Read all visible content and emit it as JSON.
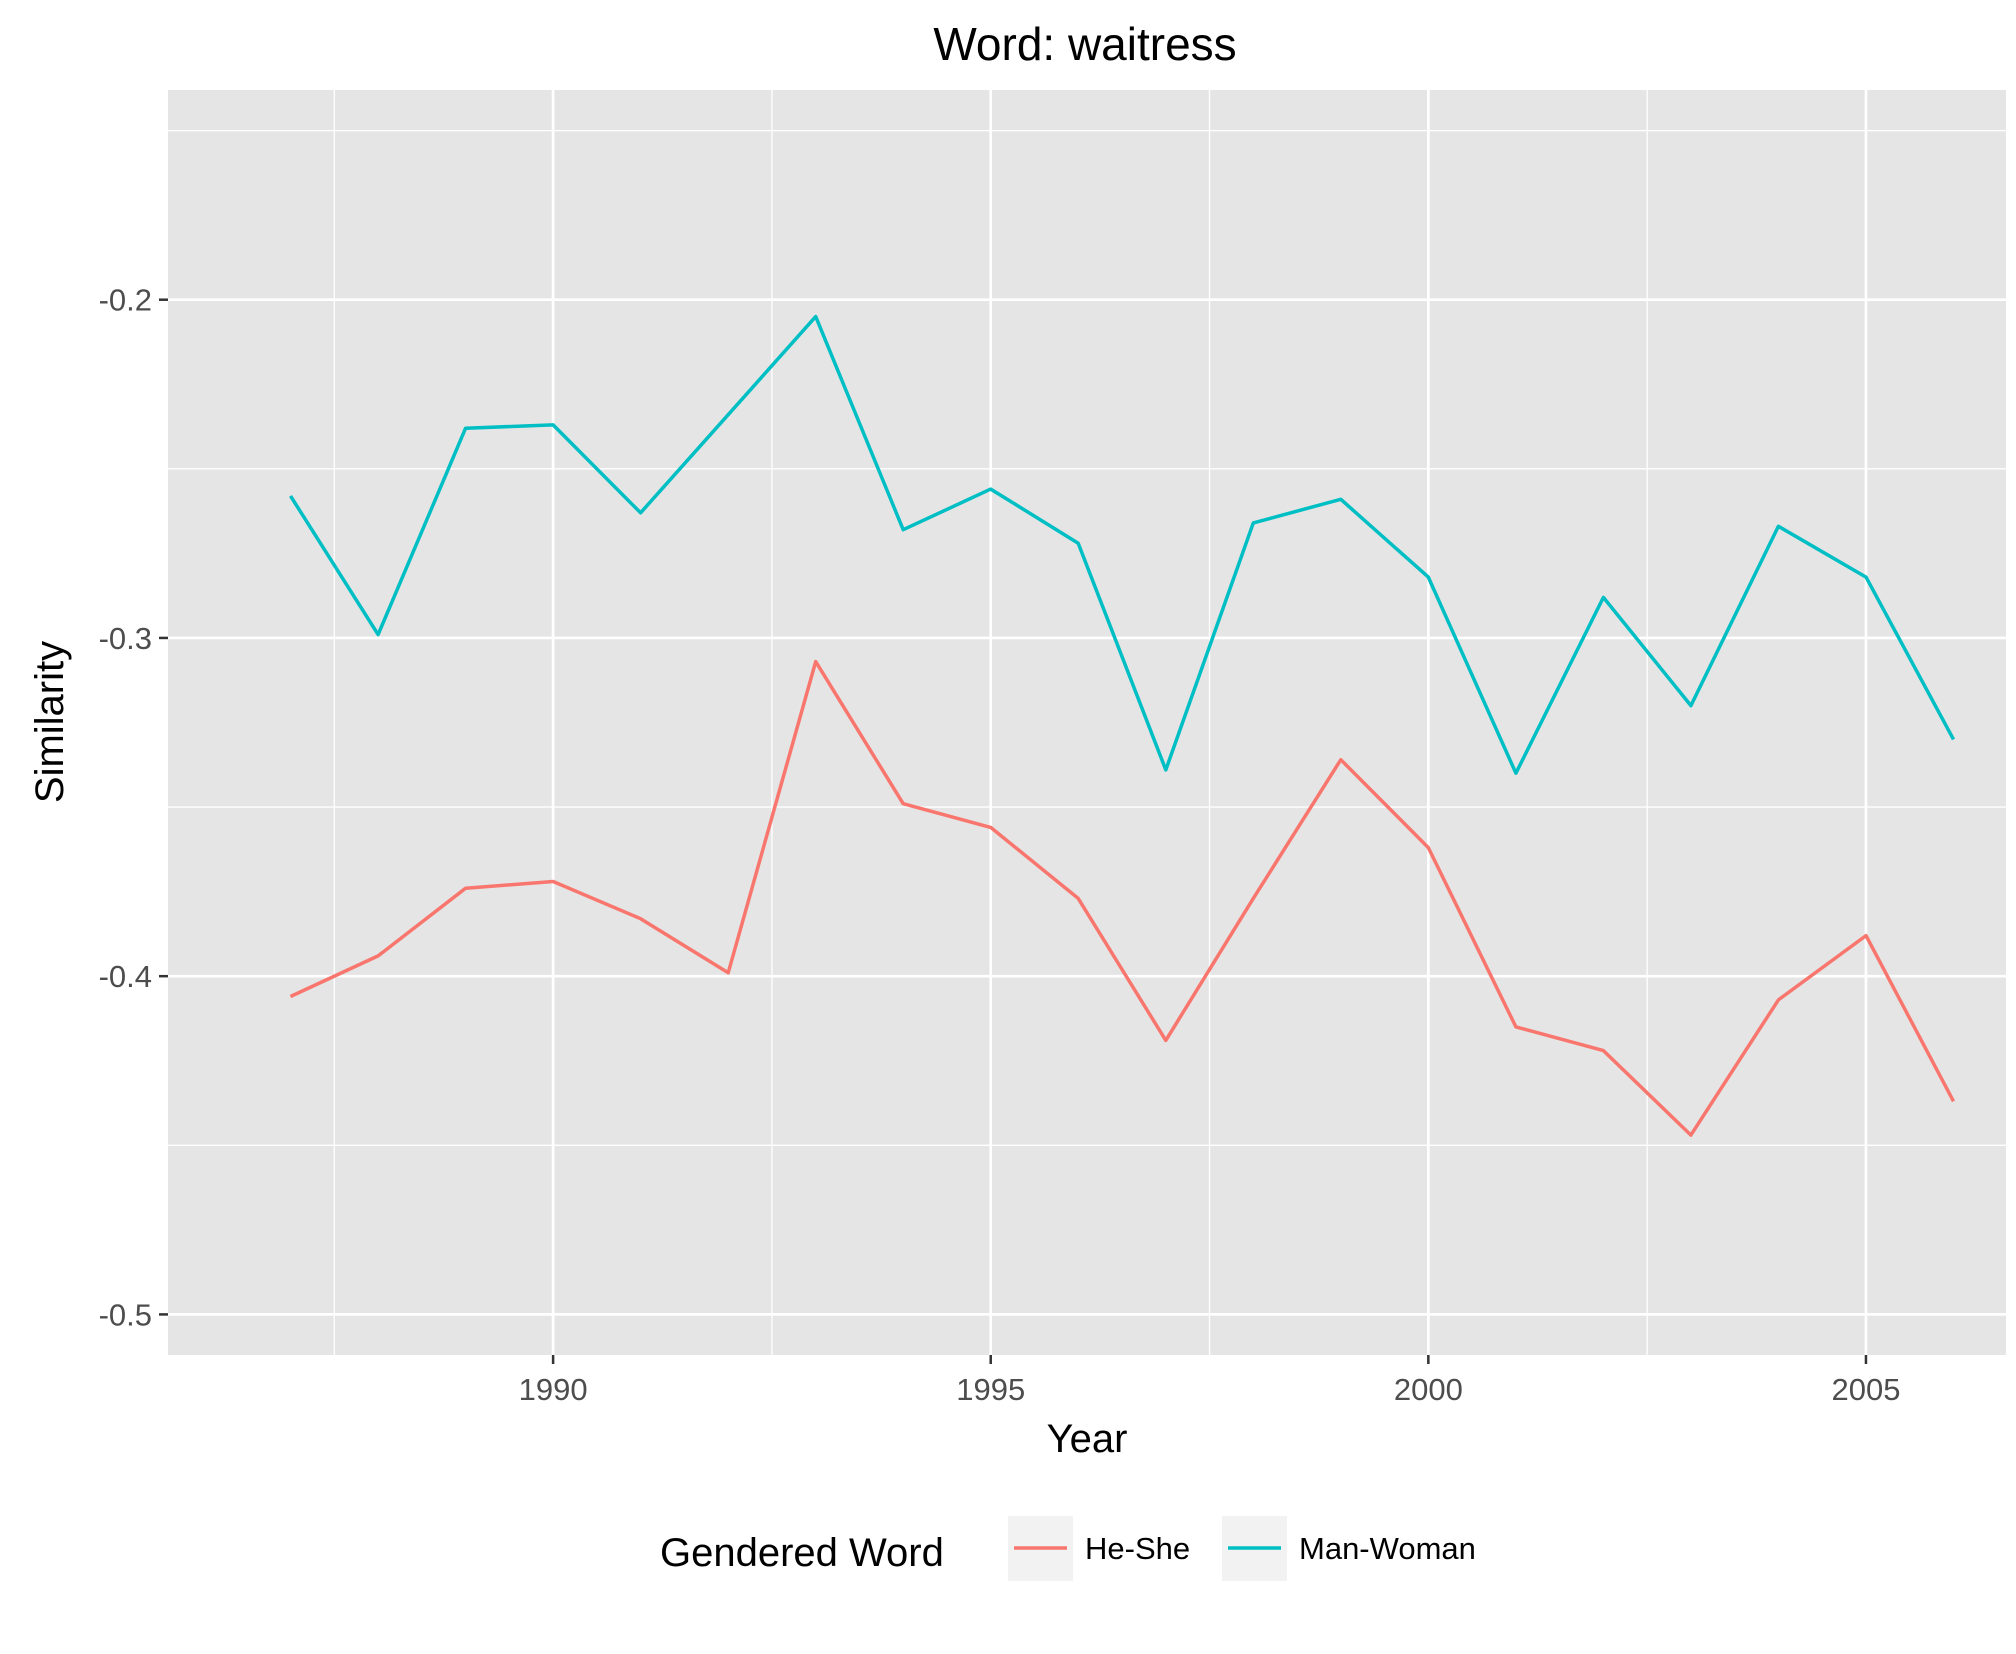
{
  "chart_data": {
    "type": "line",
    "title": "Word: waitress",
    "xlabel": "Year",
    "ylabel": "Similarity",
    "xlim": [
      1985.6,
      2006.6
    ],
    "ylim": [
      -0.512,
      -0.138
    ],
    "x_ticks": [
      1990,
      1995,
      2000,
      2005
    ],
    "y_ticks": [
      -0.5,
      -0.4,
      -0.3,
      -0.2
    ],
    "y_tick_labels": [
      "-0.5",
      "-0.4",
      "-0.3",
      "-0.2"
    ],
    "grid": true,
    "legend": {
      "title": "Gendered Word",
      "position": "bottom"
    },
    "x": [
      1987,
      1988,
      1989,
      1990,
      1991,
      1992,
      1993,
      1994,
      1995,
      1996,
      1997,
      1998,
      1999,
      2000,
      2001,
      2002,
      2003,
      2004,
      2005,
      2006
    ],
    "series": [
      {
        "name": "He-She",
        "color": "#F8766D",
        "values": [
          -0.406,
          -0.394,
          -0.374,
          -0.372,
          -0.383,
          -0.399,
          -0.307,
          -0.349,
          -0.356,
          -0.377,
          -0.419,
          -0.377,
          -0.336,
          -0.362,
          -0.415,
          -0.422,
          -0.447,
          -0.407,
          -0.388,
          -0.437
        ]
      },
      {
        "name": "Man-Woman",
        "color": "#00BFC4",
        "values": [
          -0.258,
          -0.299,
          -0.238,
          -0.237,
          -0.263,
          -0.234,
          -0.205,
          -0.268,
          -0.256,
          -0.272,
          -0.339,
          -0.266,
          -0.259,
          -0.282,
          -0.34,
          -0.288,
          -0.32,
          -0.267,
          -0.282,
          -0.33
        ]
      }
    ]
  }
}
